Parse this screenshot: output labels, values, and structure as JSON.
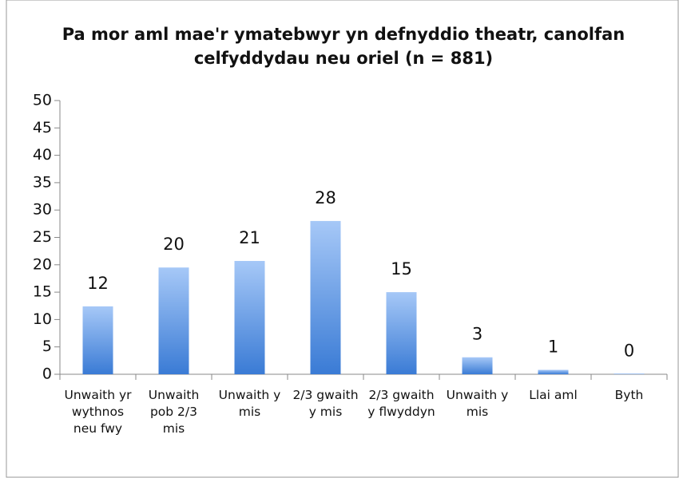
{
  "chart_data": {
    "type": "bar",
    "title": "Pa mor aml mae'r ymatebwyr yn defnyddio theatr, canolfan celfyddydau neu oriel (n = 881)",
    "categories": [
      "Unwaith yr wythnos neu fwy",
      "Unwaith pob 2/3 mis",
      "Unwaith y mis",
      "2/3 gwaith y mis",
      "2/3 gwaith y flwyddyn",
      "Unwaith y mis",
      "Llai aml",
      "Byth"
    ],
    "values": [
      12.4,
      19.5,
      20.7,
      28,
      15,
      3.1,
      0.8,
      0.1
    ],
    "value_labels": [
      "12",
      "20",
      "21",
      "28",
      "15",
      "3",
      "1",
      "0"
    ],
    "gradient": [
      "#a6c8f7",
      "#3a7bd5"
    ],
    "ylim": [
      0,
      50
    ],
    "yticks": [
      0,
      5,
      10,
      15,
      20,
      25,
      30,
      35,
      40,
      45,
      50
    ],
    "grid": false
  }
}
